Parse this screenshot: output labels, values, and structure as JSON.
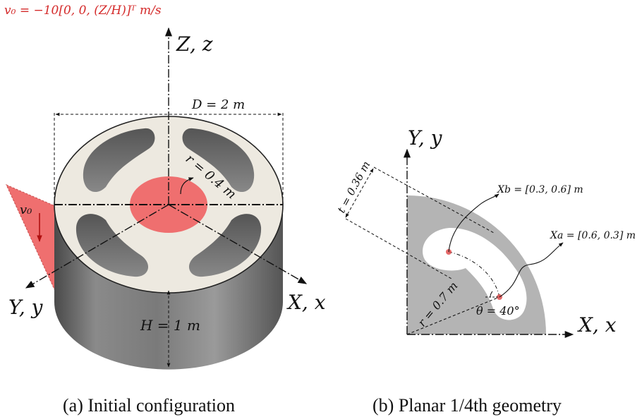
{
  "left_panel": {
    "velocity_formula": "v₀ = −10[0, 0, (Z/H)]ᵀ m/s",
    "z_axis_label": "Z, z",
    "x_axis_label": "X, x",
    "y_axis_label": "Y, y",
    "diameter_label": "D = 2 m",
    "radius_label": "r = 0.4 m",
    "height_label": "H = 1 m",
    "v0_label": "v₀",
    "caption": "(a) Initial configuration"
  },
  "right_panel": {
    "y_axis_label": "Y, y",
    "x_axis_label": "X, x",
    "thickness_label": "t = 0.36 m",
    "radius_label": "r = 0.7 m",
    "angle_label": "θ = 40°",
    "xb_label": "Xb = [0.3, 0.6] m",
    "xa_label": "Xa = [0.6, 0.3] m",
    "caption": "(b) Planar 1/4th geometry"
  },
  "colors": {
    "cylinder_side": "#6f6f6f",
    "top_face": "#ede9e0",
    "highlight_red": "#ef6f6f",
    "quarter_gray": "#b4b4b4",
    "formula_red": "#d42a2a"
  }
}
